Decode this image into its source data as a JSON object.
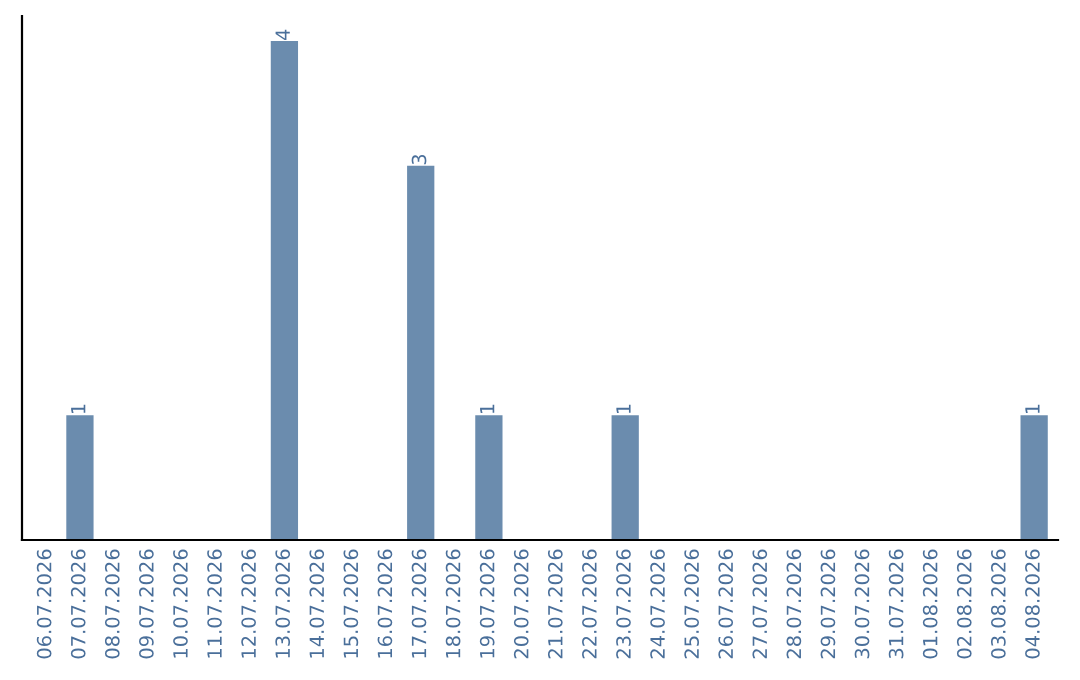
{
  "chart_data": {
    "type": "bar",
    "categories": [
      "06.07.2026",
      "07.07.2026",
      "08.07.2026",
      "09.07.2026",
      "10.07.2026",
      "11.07.2026",
      "12.07.2026",
      "13.07.2026",
      "14.07.2026",
      "15.07.2026",
      "16.07.2026",
      "17.07.2026",
      "18.07.2026",
      "19.07.2026",
      "20.07.2026",
      "21.07.2026",
      "22.07.2026",
      "23.07.2026",
      "24.07.2026",
      "25.07.2026",
      "26.07.2026",
      "27.07.2026",
      "28.07.2026",
      "29.07.2026",
      "30.07.2026",
      "31.07.2026",
      "01.08.2026",
      "02.08.2026",
      "03.08.2026",
      "04.08.2026"
    ],
    "values": [
      0,
      1,
      0,
      0,
      0,
      0,
      0,
      4,
      0,
      0,
      0,
      3,
      0,
      1,
      0,
      0,
      0,
      1,
      0,
      0,
      0,
      0,
      0,
      0,
      0,
      0,
      0,
      0,
      0,
      1
    ],
    "value_labels": [
      null,
      "1",
      null,
      null,
      null,
      null,
      null,
      "4",
      null,
      null,
      null,
      "3",
      null,
      "1",
      null,
      null,
      null,
      "1",
      null,
      null,
      null,
      null,
      null,
      null,
      null,
      null,
      null,
      null,
      null,
      "1"
    ],
    "color": "#6b8cae",
    "ylim": [
      0,
      4.2
    ],
    "tick_labels": "x",
    "grid": false,
    "legend": false
  }
}
